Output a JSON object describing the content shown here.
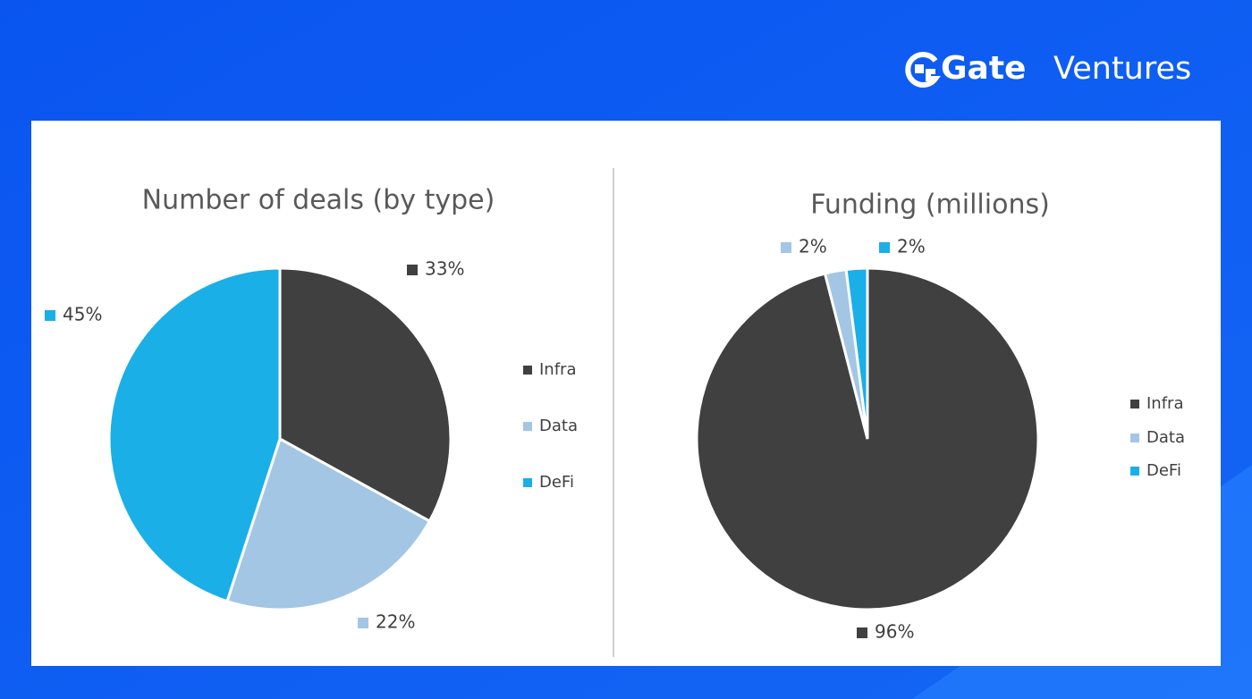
{
  "brand": {
    "name": "Gate",
    "suffix": "Ventures"
  },
  "chart_data": [
    {
      "type": "pie",
      "title": "Number of deals (by type)",
      "categories": [
        "Infra",
        "Data",
        "DeFi"
      ],
      "values": [
        33,
        22,
        45
      ],
      "value_labels": [
        "33%",
        "22%",
        "45%"
      ],
      "colors": [
        "#404040",
        "#a3c6e4",
        "#1aafe6"
      ],
      "legend": "right"
    },
    {
      "type": "pie",
      "title": "Funding (millions)",
      "categories": [
        "Infra",
        "Data",
        "DeFi"
      ],
      "values": [
        96,
        2,
        2
      ],
      "value_labels": [
        "96%",
        "2%",
        "2%"
      ],
      "colors": [
        "#404040",
        "#a3c6e4",
        "#1aafe6"
      ],
      "legend": "right"
    }
  ]
}
